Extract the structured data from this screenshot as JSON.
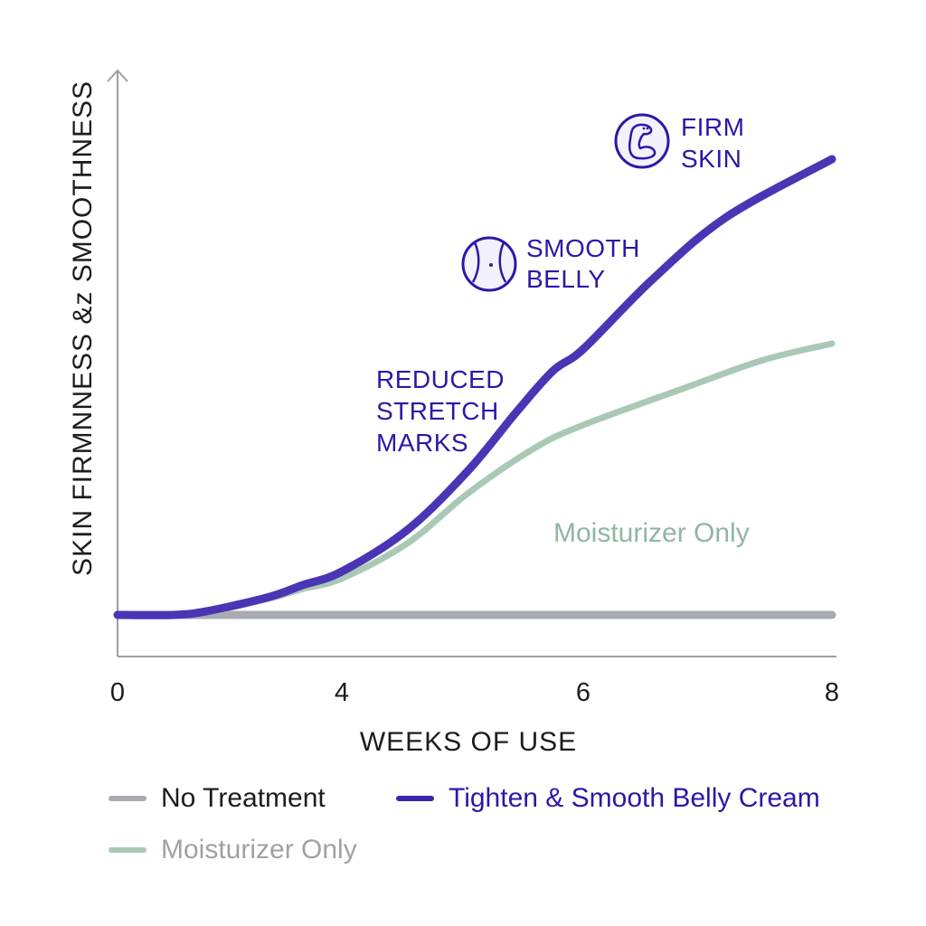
{
  "chart_data": {
    "type": "line",
    "title": "",
    "xlabel": "WEEKS OF USE",
    "ylabel": "SKIN FIRMNNESS &z SMOOTHNESS",
    "x_ticks": [
      0,
      4,
      6,
      8
    ],
    "xlim": [
      0,
      8
    ],
    "ylim": [
      0,
      100
    ],
    "y_units": "relative (no numeric scale shown)",
    "grid": false,
    "series": [
      {
        "name": "No Treatment",
        "color": "#a8abb2",
        "x": [
          0,
          1,
          2,
          3,
          4,
          5,
          6,
          7,
          8
        ],
        "y": [
          0,
          0,
          0,
          0,
          0,
          0,
          0,
          0,
          0
        ]
      },
      {
        "name": "Tighten & Smooth Belly Cream",
        "color": "#4a35b5",
        "x": [
          0,
          1,
          1.6,
          2.7,
          3.3,
          4,
          4.55,
          5.05,
          5.45,
          5.75,
          6,
          6.55,
          7.15,
          8
        ],
        "y": [
          0,
          0,
          0.7,
          3.3,
          5.5,
          8,
          15.8,
          26.7,
          37.5,
          45,
          49,
          61.7,
          73.3,
          84
        ]
      },
      {
        "name": "Moisturizer Only",
        "color": "#a9c9b5",
        "x": [
          0,
          1,
          1.6,
          2.7,
          3.3,
          4,
          4.55,
          5.05,
          5.6,
          6,
          6.8,
          7.45,
          8
        ],
        "y": [
          0,
          0,
          0.5,
          3,
          4.8,
          6.7,
          13.3,
          22.5,
          30.8,
          35,
          41.7,
          47,
          50
        ]
      }
    ],
    "annotations": [
      {
        "id": "firm-skin",
        "lines": [
          "FIRM",
          "SKIN"
        ],
        "icon": "flexed-arm-icon"
      },
      {
        "id": "smooth-belly",
        "lines": [
          "SMOOTH",
          "BELLY"
        ],
        "icon": "belly-icon"
      },
      {
        "id": "reduced-stretch-marks",
        "lines": [
          "REDUCED",
          "STRETCH",
          "MARKS"
        ],
        "icon": null
      }
    ],
    "series_label": "Moisturizer Only",
    "legend_position": "bottom-left",
    "legend": [
      {
        "label": "No Treatment",
        "color": "#a8abb2",
        "text_color": "#1c1c1c"
      },
      {
        "label": "Tighten & Smooth Belly Cream",
        "color": "#3a27a8",
        "text_color": "#2a18a8"
      },
      {
        "label": "Moisturizer Only",
        "color": "#a9c9b5",
        "text_color": "#9ea2a8"
      }
    ]
  }
}
